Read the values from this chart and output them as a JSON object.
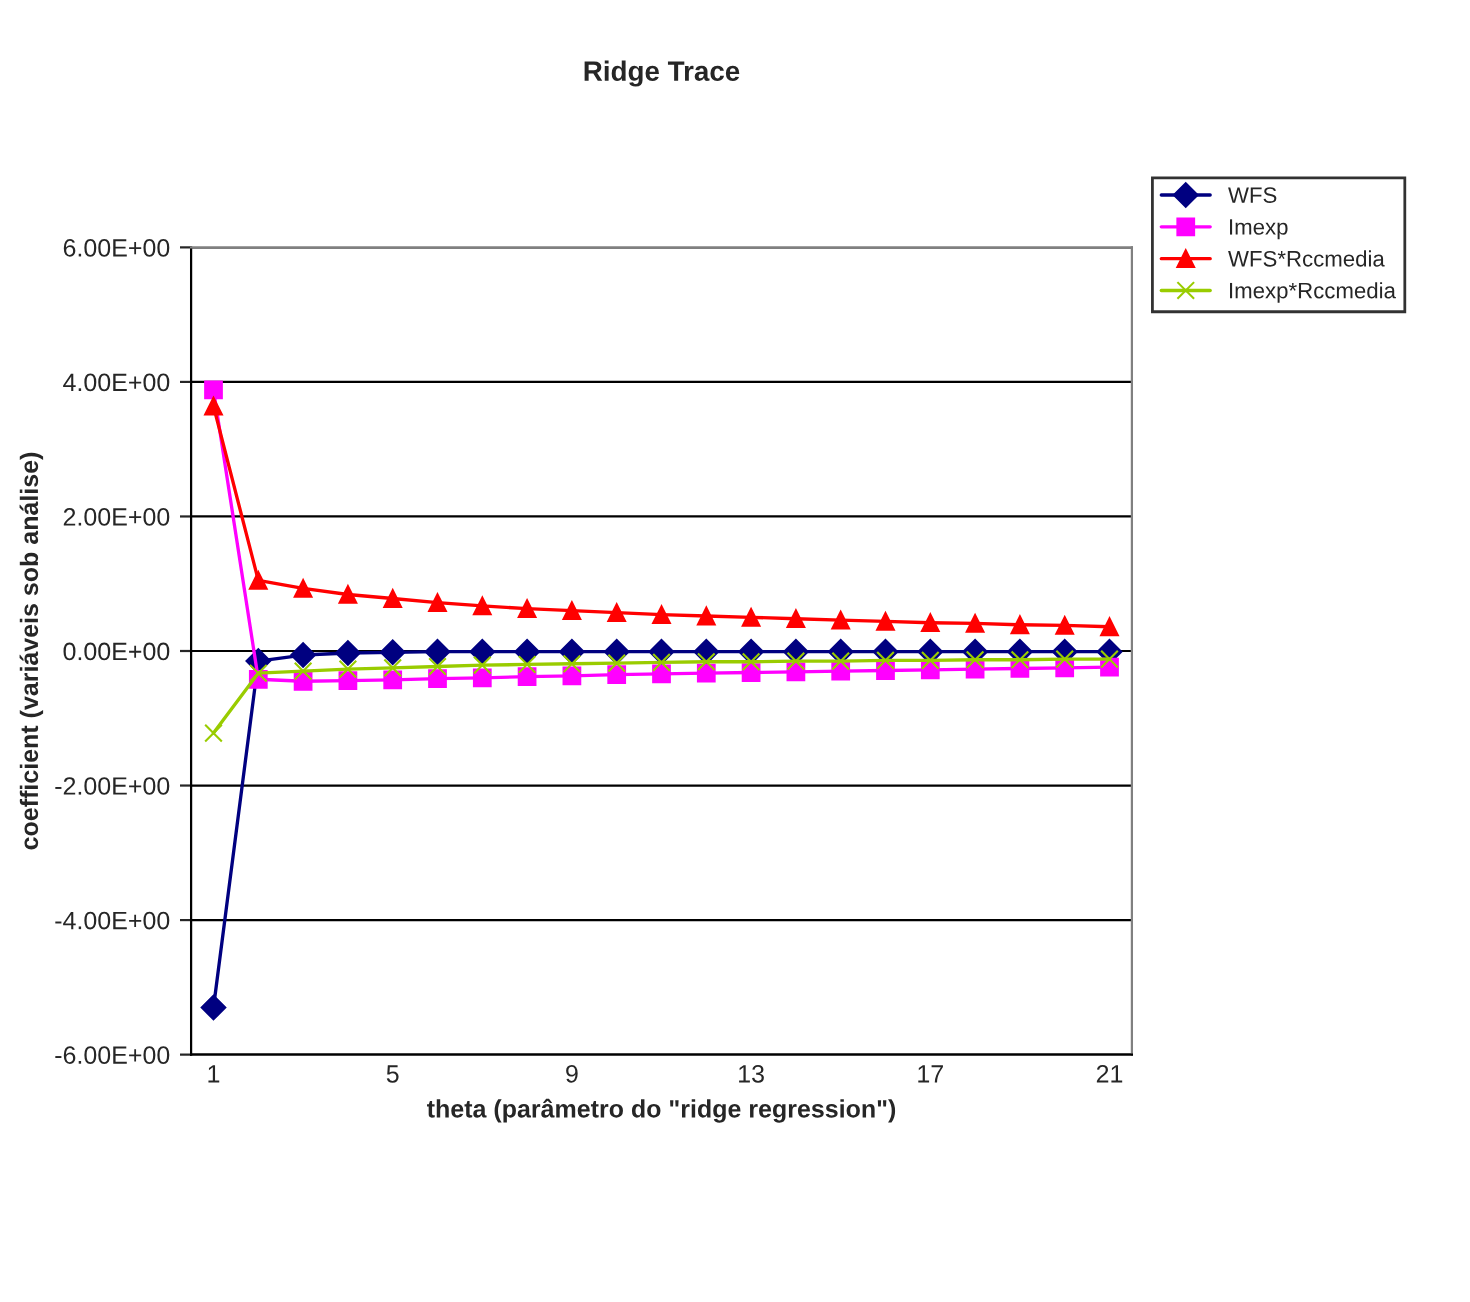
{
  "chart_data": {
    "type": "line",
    "title": "Ridge Trace",
    "xlabel": "theta (parâmetro do \"ridge regression\")",
    "ylabel": "coefficient (variáveis sob análise)",
    "categories": [
      "1",
      null,
      null,
      null,
      "5",
      null,
      null,
      null,
      "9",
      null,
      null,
      null,
      "13",
      null,
      null,
      null,
      "17",
      null,
      null,
      null,
      "21"
    ],
    "series": [
      {
        "name": "WFS",
        "color": "#000080",
        "marker": "diamond",
        "values": [
          -5.3,
          -0.15,
          -0.06,
          -0.03,
          -0.02,
          -0.01,
          -0.01,
          -0.01,
          -0.01,
          -0.01,
          -0.01,
          -0.01,
          -0.01,
          -0.01,
          -0.01,
          -0.01,
          -0.01,
          -0.01,
          -0.01,
          -0.01,
          -0.01
        ]
      },
      {
        "name": "Imexp",
        "color": "#ff00ff",
        "marker": "square",
        "values": [
          3.88,
          -0.42,
          -0.45,
          -0.44,
          -0.43,
          -0.41,
          -0.4,
          -0.38,
          -0.37,
          -0.35,
          -0.34,
          -0.33,
          -0.32,
          -0.31,
          -0.3,
          -0.29,
          -0.28,
          -0.27,
          -0.26,
          -0.25,
          -0.24
        ]
      },
      {
        "name": "WFS*Rccmedia",
        "color": "#ff0000",
        "marker": "triangle",
        "values": [
          3.64,
          1.05,
          0.93,
          0.84,
          0.78,
          0.72,
          0.67,
          0.63,
          0.6,
          0.57,
          0.54,
          0.52,
          0.5,
          0.48,
          0.46,
          0.44,
          0.42,
          0.41,
          0.39,
          0.38,
          0.36
        ]
      },
      {
        "name": "Imexp*Rccmedia",
        "color": "#99cc00",
        "marker": "cross",
        "values": [
          -1.22,
          -0.33,
          -0.3,
          -0.27,
          -0.25,
          -0.23,
          -0.21,
          -0.2,
          -0.19,
          -0.18,
          -0.17,
          -0.16,
          -0.16,
          -0.15,
          -0.15,
          -0.14,
          -0.14,
          -0.13,
          -0.13,
          -0.12,
          -0.12
        ]
      }
    ],
    "ylim": [
      -6,
      6
    ],
    "yticks": [
      {
        "value": -6,
        "label": "-6.00E+00"
      },
      {
        "value": -4,
        "label": "-4.00E+00"
      },
      {
        "value": -2,
        "label": "-2.00E+00"
      },
      {
        "value": 0,
        "label": "0.00E+00"
      },
      {
        "value": 2,
        "label": "2.00E+00"
      },
      {
        "value": 4,
        "label": "4.00E+00"
      },
      {
        "value": 6,
        "label": "6.00E+00"
      }
    ],
    "grid": "y",
    "legend": "top right",
    "line_style": "solid"
  }
}
